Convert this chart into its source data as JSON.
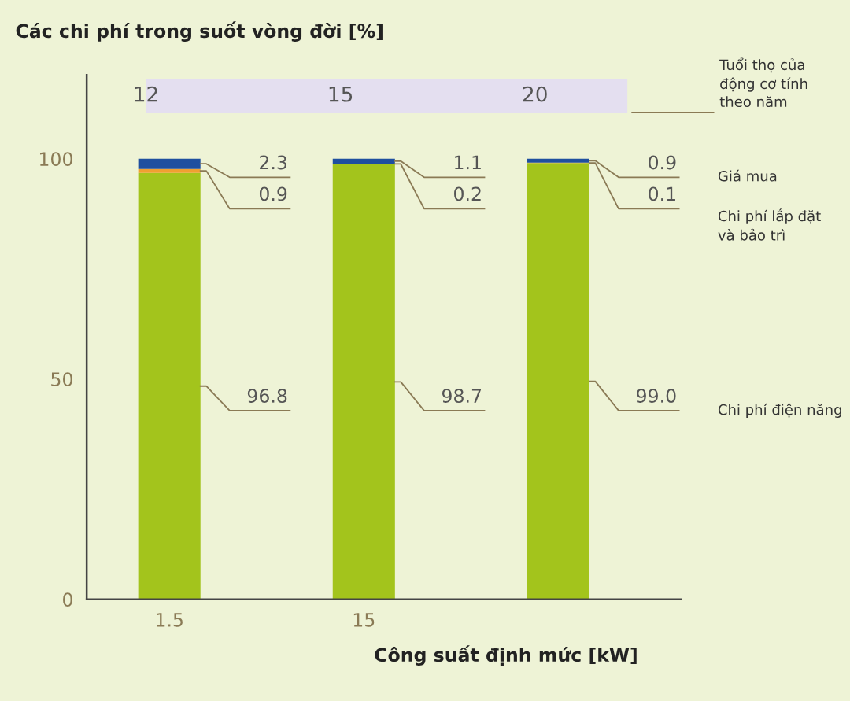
{
  "chart_data": {
    "type": "bar",
    "title": "Các chi phí trong suốt vòng đời [%]",
    "xlabel": "Công suất định mức [kW]",
    "categories": [
      "1.5",
      "15",
      null
    ],
    "stacked": true,
    "legend": "right",
    "series": [
      {
        "name": "Chi phí điện năng",
        "color": "#a3c41c",
        "values": [
          96.8,
          98.7,
          99.0
        ],
        "value_labels": [
          "96.8",
          "98.7",
          "99.0"
        ]
      },
      {
        "name": "Chi phí lắp đặt\nvà bảo trì",
        "color": "#f0a030",
        "values": [
          0.9,
          0.2,
          0.1
        ],
        "value_labels": [
          "0.9",
          "0.2",
          "0.1"
        ]
      },
      {
        "name": "Giá mua",
        "color": "#1f4f9f",
        "values": [
          2.3,
          1.1,
          0.9
        ],
        "value_labels": [
          "2.3",
          "1.1",
          "0.9"
        ]
      }
    ],
    "ylim": [
      0,
      119
    ],
    "yticks": [
      0,
      50,
      100
    ],
    "bands": [
      {
        "axis": "y",
        "from": 110.5,
        "to": 118,
        "color": "#e4dff0",
        "label": "Tuổi thọ của\nđộng cơ tính\ntheo năm"
      }
    ],
    "annotations": [
      "12",
      "15",
      "20"
    ]
  }
}
